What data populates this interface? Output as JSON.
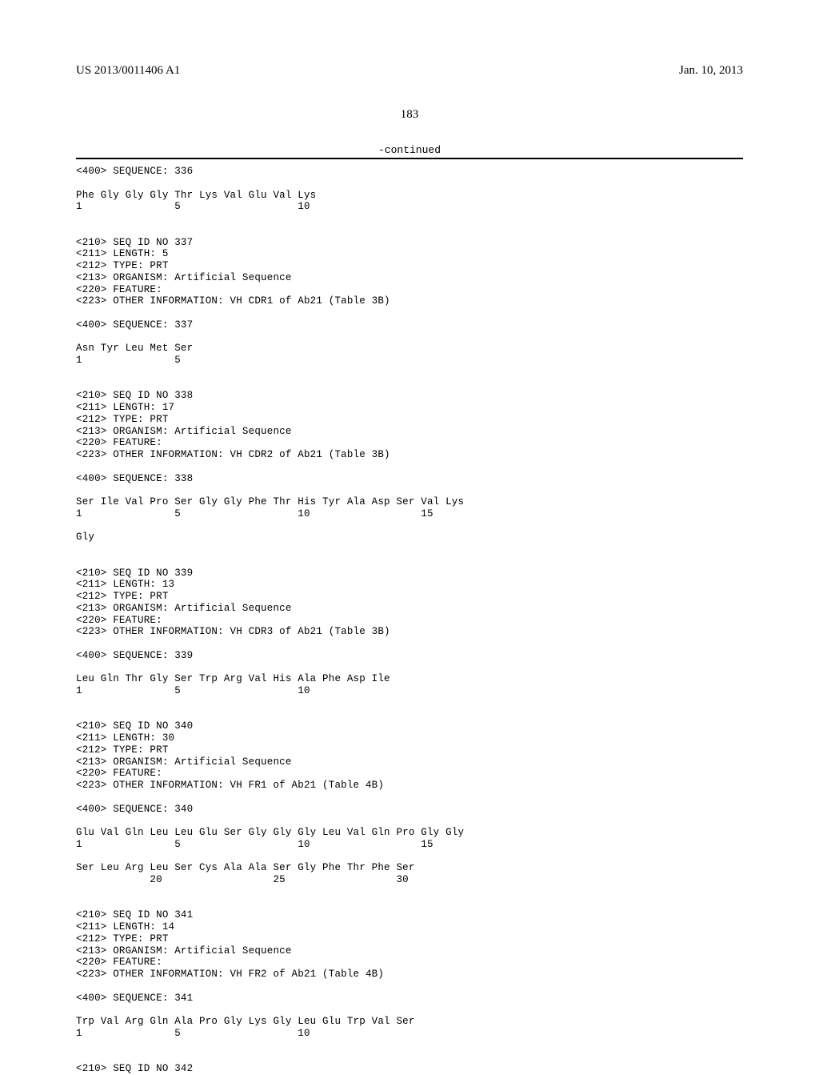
{
  "header": {
    "publication_number": "US 2013/0011406 A1",
    "publication_date": "Jan. 10, 2013"
  },
  "page_number": "183",
  "continued_label": "-continued",
  "sequences": [
    {
      "tag_400": "<400> SEQUENCE: 336",
      "residues": [
        "Phe",
        "Gly",
        "Gly",
        "Gly",
        "Thr",
        "Lys",
        "Val",
        "Glu",
        "Val",
        "Lys"
      ],
      "positions": [
        "1",
        "",
        "",
        "",
        "5",
        "",
        "",
        "",
        "",
        "10"
      ]
    },
    {
      "headers": [
        "<210> SEQ ID NO 337",
        "<211> LENGTH: 5",
        "<212> TYPE: PRT",
        "<213> ORGANISM: Artificial Sequence",
        "<220> FEATURE:",
        "<223> OTHER INFORMATION: VH CDR1 of Ab21 (Table 3B)"
      ],
      "tag_400": "<400> SEQUENCE: 337",
      "residues": [
        "Asn",
        "Tyr",
        "Leu",
        "Met",
        "Ser"
      ],
      "positions": [
        "1",
        "",
        "",
        "",
        "5"
      ]
    },
    {
      "headers": [
        "<210> SEQ ID NO 338",
        "<211> LENGTH: 17",
        "<212> TYPE: PRT",
        "<213> ORGANISM: Artificial Sequence",
        "<220> FEATURE:",
        "<223> OTHER INFORMATION: VH CDR2 of Ab21 (Table 3B)"
      ],
      "tag_400": "<400> SEQUENCE: 338",
      "lines": [
        {
          "residues": [
            "Ser",
            "Ile",
            "Val",
            "Pro",
            "Ser",
            "Gly",
            "Gly",
            "Phe",
            "Thr",
            "His",
            "Tyr",
            "Ala",
            "Asp",
            "Ser",
            "Val",
            "Lys"
          ],
          "positions": [
            "1",
            "",
            "",
            "",
            "5",
            "",
            "",
            "",
            "",
            "10",
            "",
            "",
            "",
            "",
            "15",
            ""
          ]
        },
        {
          "residues": [
            "Gly"
          ],
          "positions": []
        }
      ]
    },
    {
      "headers": [
        "<210> SEQ ID NO 339",
        "<211> LENGTH: 13",
        "<212> TYPE: PRT",
        "<213> ORGANISM: Artificial Sequence",
        "<220> FEATURE:",
        "<223> OTHER INFORMATION: VH CDR3 of Ab21 (Table 3B)"
      ],
      "tag_400": "<400> SEQUENCE: 339",
      "residues": [
        "Leu",
        "Gln",
        "Thr",
        "Gly",
        "Ser",
        "Trp",
        "Arg",
        "Val",
        "His",
        "Ala",
        "Phe",
        "Asp",
        "Ile"
      ],
      "positions": [
        "1",
        "",
        "",
        "",
        "5",
        "",
        "",
        "",
        "",
        "10",
        "",
        "",
        ""
      ]
    },
    {
      "headers": [
        "<210> SEQ ID NO 340",
        "<211> LENGTH: 30",
        "<212> TYPE: PRT",
        "<213> ORGANISM: Artificial Sequence",
        "<220> FEATURE:",
        "<223> OTHER INFORMATION: VH FR1 of Ab21 (Table 4B)"
      ],
      "tag_400": "<400> SEQUENCE: 340",
      "lines": [
        {
          "residues": [
            "Glu",
            "Val",
            "Gln",
            "Leu",
            "Leu",
            "Glu",
            "Ser",
            "Gly",
            "Gly",
            "Gly",
            "Leu",
            "Val",
            "Gln",
            "Pro",
            "Gly",
            "Gly"
          ],
          "positions": [
            "1",
            "",
            "",
            "",
            "5",
            "",
            "",
            "",
            "",
            "10",
            "",
            "",
            "",
            "",
            "15",
            ""
          ]
        },
        {
          "residues": [
            "Ser",
            "Leu",
            "Arg",
            "Leu",
            "Ser",
            "Cys",
            "Ala",
            "Ala",
            "Ser",
            "Gly",
            "Phe",
            "Thr",
            "Phe",
            "Ser"
          ],
          "positions": [
            "",
            "",
            "",
            "20",
            "",
            "",
            "",
            "",
            "25",
            "",
            "",
            "",
            "",
            "30"
          ]
        }
      ]
    },
    {
      "headers": [
        "<210> SEQ ID NO 341",
        "<211> LENGTH: 14",
        "<212> TYPE: PRT",
        "<213> ORGANISM: Artificial Sequence",
        "<220> FEATURE:",
        "<223> OTHER INFORMATION: VH FR2 of Ab21 (Table 4B)"
      ],
      "tag_400": "<400> SEQUENCE: 341",
      "residues": [
        "Trp",
        "Val",
        "Arg",
        "Gln",
        "Ala",
        "Pro",
        "Gly",
        "Lys",
        "Gly",
        "Leu",
        "Glu",
        "Trp",
        "Val",
        "Ser"
      ],
      "positions": [
        "1",
        "",
        "",
        "",
        "5",
        "",
        "",
        "",
        "",
        "10",
        "",
        "",
        "",
        ""
      ]
    },
    {
      "trailing_header": "<210> SEQ ID NO 342"
    }
  ]
}
